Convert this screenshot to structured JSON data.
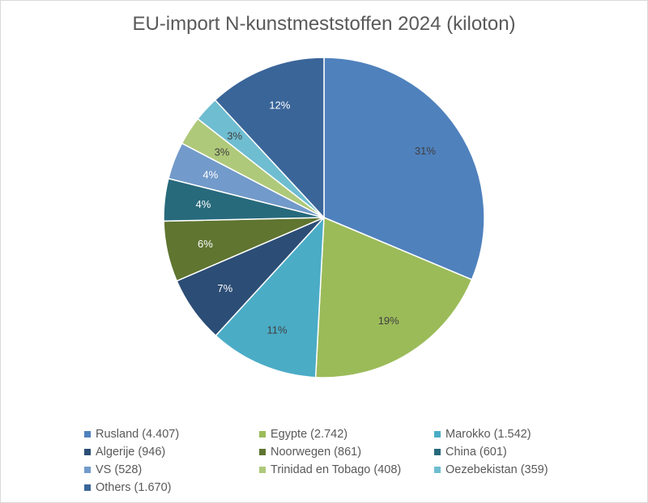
{
  "chart_data": {
    "type": "pie",
    "title": "EU-import N-kunstmeststoffen 2024 (kiloton)",
    "slices": [
      {
        "label": "Rusland (4.407)",
        "value": 4407,
        "percent_label": "31%",
        "color": "#4f81bd",
        "label_color": "#404040"
      },
      {
        "label": "Egypte (2.742)",
        "value": 2742,
        "percent_label": "19%",
        "color": "#9bbb59",
        "label_color": "#404040"
      },
      {
        "label": "Marokko (1.542)",
        "value": 1542,
        "percent_label": "11%",
        "color": "#4bacc6",
        "label_color": "#404040"
      },
      {
        "label": "Algerije (946)",
        "value": 946,
        "percent_label": "7%",
        "color": "#2c4d75",
        "label_color": "#ffffff"
      },
      {
        "label": "Noorwegen (861)",
        "value": 861,
        "percent_label": "6%",
        "color": "#5f7530",
        "label_color": "#ffffff"
      },
      {
        "label": "China (601)",
        "value": 601,
        "percent_label": "4%",
        "color": "#276a7c",
        "label_color": "#ffffff"
      },
      {
        "label": "VS (528)",
        "value": 528,
        "percent_label": "4%",
        "color": "#729aca",
        "label_color": "#ffffff"
      },
      {
        "label": "Trinidad en Tobago (408)",
        "value": 408,
        "percent_label": "3%",
        "color": "#afc97a",
        "label_color": "#404040"
      },
      {
        "label": "Oezebekistan (359)",
        "value": 359,
        "percent_label": "3%",
        "color": "#6fbdd1",
        "label_color": "#404040"
      },
      {
        "label": "Others (1.670)",
        "value": 1670,
        "percent_label": "12%",
        "color": "#3a6599",
        "label_color": "#ffffff"
      }
    ],
    "legend_position": "bottom"
  }
}
